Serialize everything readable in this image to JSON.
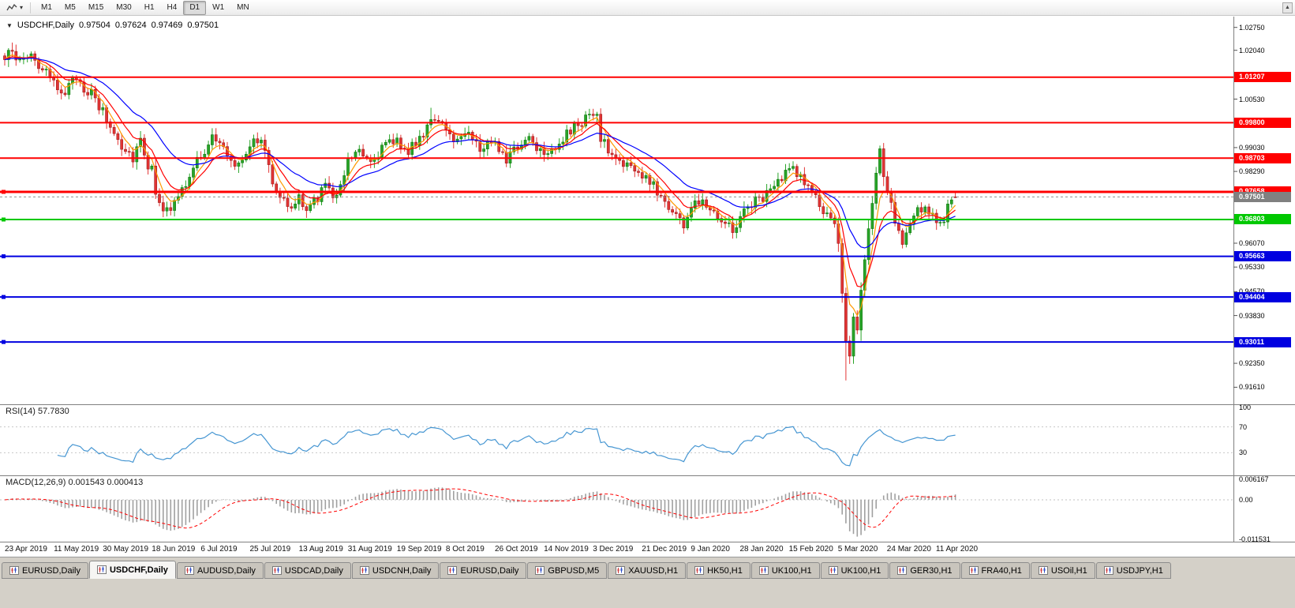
{
  "toolbar": {
    "timeframes": [
      "M1",
      "M5",
      "M15",
      "M30",
      "H1",
      "H4",
      "D1",
      "W1",
      "MN"
    ],
    "active_timeframe": "D1",
    "dropdown_caret": "▾"
  },
  "scroll_up_glyph": "▲",
  "chart": {
    "title": {
      "dropdown_glyph": "▼",
      "symbol": "USDCHF,Daily",
      "open": "0.97504",
      "high": "0.97624",
      "low": "0.97469",
      "close": "0.97501"
    },
    "y_axis_ticks": [
      {
        "text": "1.02750",
        "price": 1.0275
      },
      {
        "text": "1.02040",
        "price": 1.0204
      },
      {
        "text": "1.00530",
        "price": 1.0053
      },
      {
        "text": "0.99030",
        "price": 0.9903
      },
      {
        "text": "0.98290",
        "price": 0.9829
      },
      {
        "text": "0.96070",
        "price": 0.9607
      },
      {
        "text": "0.95330",
        "price": 0.9533
      },
      {
        "text": "0.94570",
        "price": 0.9457
      },
      {
        "text": "0.93830",
        "price": 0.9383
      },
      {
        "text": "0.92350",
        "price": 0.9235
      },
      {
        "text": "0.91610",
        "price": 0.9161
      }
    ],
    "price_lines": [
      {
        "value": 1.01207,
        "label": "1.01207",
        "color": "#FF0000",
        "width": 2,
        "handles": false
      },
      {
        "value": 0.998,
        "label": "0.99800",
        "color": "#FF0000",
        "width": 2,
        "handles": false
      },
      {
        "value": 0.98703,
        "label": "0.98703",
        "color": "#FF0000",
        "width": 2,
        "handles": false
      },
      {
        "value": 0.97658,
        "label": "0.97658",
        "color": "#FF0000",
        "width": 3,
        "handles": true
      },
      {
        "value": 0.96803,
        "label": "0.96803",
        "color": "#00C800",
        "width": 2,
        "handles": true
      },
      {
        "value": 0.95663,
        "label": "0.95663",
        "color": "#0000E0",
        "width": 2,
        "handles": true
      },
      {
        "value": 0.94404,
        "label": "0.94404",
        "color": "#0000E0",
        "width": 2,
        "handles": true
      },
      {
        "value": 0.93011,
        "label": "0.93011",
        "color": "#0000E0",
        "width": 2,
        "handles": true
      }
    ],
    "current_price": {
      "value": 0.97501,
      "label": "0.97501",
      "color": "#808080"
    },
    "x_axis_labels": [
      "23 Apr 2019",
      "11 May 2019",
      "30 May 2019",
      "18 Jun 2019",
      "6 Jul 2019",
      "25 Jul 2019",
      "13 Aug 2019",
      "31 Aug 2019",
      "19 Sep 2019",
      "8 Oct 2019",
      "26 Oct 2019",
      "14 Nov 2019",
      "3 Dec 2019",
      "21 Dec 2019",
      "9 Jan 2020",
      "28 Jan 2020",
      "15 Feb 2020",
      "5 Mar 2020",
      "24 Mar 2020",
      "11 Apr 2020"
    ]
  },
  "indicators": {
    "rsi": {
      "label": "RSI(14) 57.7830",
      "period": 14,
      "last_value": 57.783,
      "levels": [
        "100",
        "70",
        "30"
      ],
      "line_color": "#4696d2"
    },
    "macd": {
      "label": "MACD(12,26,9) 0.001543 0.000413",
      "fast": 12,
      "slow": 26,
      "signal": 9,
      "main_value": 0.001543,
      "signal_value": 0.000413,
      "scale_max": "0.006167",
      "scale_zero": "0.00",
      "scale_min": "-0.011531",
      "histogram_color": "#a0a0a0",
      "signal_color": "#FF0000"
    }
  },
  "tabs": [
    {
      "label": "EURUSD,Daily",
      "active": false
    },
    {
      "label": "USDCHF,Daily",
      "active": true
    },
    {
      "label": "AUDUSD,Daily",
      "active": false
    },
    {
      "label": "USDCAD,Daily",
      "active": false
    },
    {
      "label": "USDCNH,Daily",
      "active": false
    },
    {
      "label": "EURUSD,Daily",
      "active": false
    },
    {
      "label": "GBPUSD,M5",
      "active": false
    },
    {
      "label": "XAUUSD,H1",
      "active": false
    },
    {
      "label": "HK50,H1",
      "active": false
    },
    {
      "label": "UK100,H1",
      "active": false
    },
    {
      "label": "UK100,H1",
      "active": false
    },
    {
      "label": "GER30,H1",
      "active": false
    },
    {
      "label": "FRA40,H1",
      "active": false
    },
    {
      "label": "USOil,H1",
      "active": false
    },
    {
      "label": "USDJPY,H1",
      "active": false
    }
  ],
  "chart_data": {
    "type": "candlestick",
    "symbol": "USDCHF",
    "timeframe": "Daily",
    "candle_count": 253,
    "y_axis_range": [
      0.9118,
      1.0306
    ],
    "up_color": "#28a428",
    "down_color": "#e23434",
    "up_stroke": "#0b6e0b",
    "down_stroke": "#8f1414",
    "noise": 0.0011,
    "seed": 987654321,
    "last_candle": {
      "open": 0.97504,
      "high": 0.97624,
      "low": 0.97469,
      "close": 0.97501
    },
    "spike_highs": [
      [
        2,
        1.0228
      ],
      [
        113,
        1.0026
      ],
      [
        155,
        1.0023
      ],
      [
        232,
        0.99035
      ]
    ],
    "spike_lows": [
      [
        44,
        0.9693
      ],
      [
        80,
        0.9685
      ],
      [
        180,
        0.9648
      ],
      [
        223,
        0.9182
      ]
    ],
    "moving_averages": [
      {
        "period": 5,
        "color": "#FF9900"
      },
      {
        "period": 10,
        "color": "#FF0000"
      },
      {
        "period": 25,
        "color": "#0000FF"
      }
    ],
    "close_waypoints": [
      [
        0,
        1.0175
      ],
      [
        2,
        1.021
      ],
      [
        4,
        1.0165
      ],
      [
        7,
        1.0195
      ],
      [
        10,
        1.014
      ],
      [
        13,
        1.0095
      ],
      [
        16,
        1.0075
      ],
      [
        19,
        1.012
      ],
      [
        22,
        1.008
      ],
      [
        26,
        1.001
      ],
      [
        29,
        0.995
      ],
      [
        32,
        0.99
      ],
      [
        34,
        0.9875
      ],
      [
        36,
        0.9935
      ],
      [
        39,
        0.982
      ],
      [
        42,
        0.972
      ],
      [
        44,
        0.9698
      ],
      [
        46,
        0.976
      ],
      [
        49,
        0.98
      ],
      [
        52,
        0.9885
      ],
      [
        55,
        0.9935
      ],
      [
        58,
        0.99
      ],
      [
        61,
        0.985
      ],
      [
        63,
        0.988
      ],
      [
        65,
        0.9915
      ],
      [
        67,
        0.993
      ],
      [
        69,
        0.9895
      ],
      [
        71,
        0.982
      ],
      [
        74,
        0.9735
      ],
      [
        76,
        0.9705
      ],
      [
        78,
        0.9755
      ],
      [
        80,
        0.9698
      ],
      [
        82,
        0.974
      ],
      [
        85,
        0.979
      ],
      [
        87,
        0.975
      ],
      [
        89,
        0.98
      ],
      [
        91,
        0.987
      ],
      [
        94,
        0.9905
      ],
      [
        97,
        0.9862
      ],
      [
        100,
        0.99
      ],
      [
        104,
        0.993
      ],
      [
        107,
        0.9888
      ],
      [
        110,
        0.9935
      ],
      [
        113,
        0.9998
      ],
      [
        115,
        0.9972
      ],
      [
        117,
        0.995
      ],
      [
        120,
        0.9925
      ],
      [
        123,
        0.9962
      ],
      [
        126,
        0.9892
      ],
      [
        128,
        0.9915
      ],
      [
        130,
        0.993
      ],
      [
        133,
        0.9868
      ],
      [
        136,
        0.9905
      ],
      [
        139,
        0.9938
      ],
      [
        141,
        0.991
      ],
      [
        143,
        0.989
      ],
      [
        146,
        0.9908
      ],
      [
        149,
        0.994
      ],
      [
        152,
        0.9975
      ],
      [
        155,
        1.0005
      ],
      [
        157,
        0.9985
      ],
      [
        159,
        0.9905
      ],
      [
        162,
        0.9868
      ],
      [
        165,
        0.985
      ],
      [
        167,
        0.983
      ],
      [
        169,
        0.9812
      ],
      [
        172,
        0.9788
      ],
      [
        175,
        0.9735
      ],
      [
        178,
        0.9698
      ],
      [
        180,
        0.9662
      ],
      [
        182,
        0.9715
      ],
      [
        185,
        0.9745
      ],
      [
        188,
        0.9708
      ],
      [
        191,
        0.9678
      ],
      [
        193,
        0.9645
      ],
      [
        195,
        0.9692
      ],
      [
        198,
        0.973
      ],
      [
        201,
        0.9752
      ],
      [
        204,
        0.9778
      ],
      [
        207,
        0.982
      ],
      [
        209,
        0.9843
      ],
      [
        211,
        0.9812
      ],
      [
        213,
        0.978
      ],
      [
        215,
        0.9745
      ],
      [
        217,
        0.9705
      ],
      [
        219,
        0.9662
      ],
      [
        221,
        0.961
      ],
      [
        222,
        0.948
      ],
      [
        223,
        0.93
      ],
      [
        224,
        0.929
      ],
      [
        225,
        0.94
      ],
      [
        226,
        0.934
      ],
      [
        227,
        0.944
      ],
      [
        228,
        0.954
      ],
      [
        229,
        0.962
      ],
      [
        230,
        0.972
      ],
      [
        231,
        0.984
      ],
      [
        232,
        0.9885
      ],
      [
        233,
        0.983
      ],
      [
        234,
        0.9755
      ],
      [
        236,
        0.968
      ],
      [
        238,
        0.96
      ],
      [
        240,
        0.9665
      ],
      [
        242,
        0.97
      ],
      [
        244,
        0.9725
      ],
      [
        246,
        0.969
      ],
      [
        248,
        0.967
      ],
      [
        250,
        0.9705
      ],
      [
        251,
        0.973
      ],
      [
        252,
        0.975
      ]
    ]
  }
}
